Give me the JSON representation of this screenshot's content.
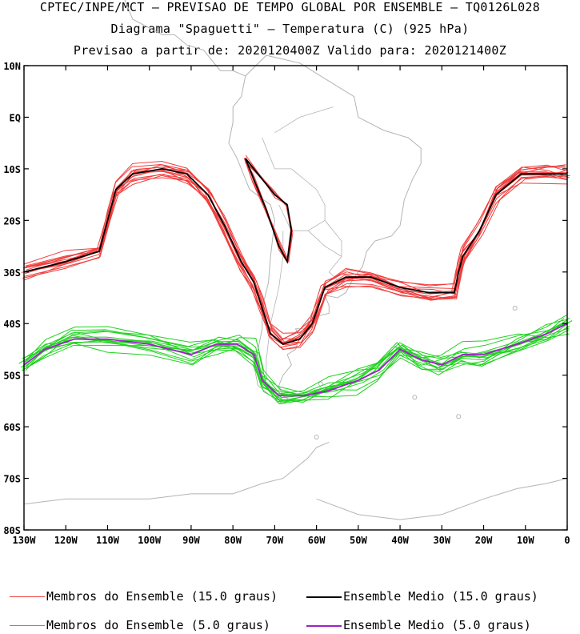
{
  "header": {
    "line1": "CPTEC/INPE/MCT — PREVISAO DE TEMPO GLOBAL POR ENSEMBLE — TQ0126L028",
    "line2": "Diagrama \"Spaguetti\" — Temperatura (C) (925 hPa)",
    "line3": "Previsao a partir de: 2020120400Z  Valido para: 2020121400Z"
  },
  "map": {
    "lat_labels": [
      "10N",
      "EQ",
      "10S",
      "20S",
      "30S",
      "40S",
      "50S",
      "60S",
      "70S",
      "80S"
    ],
    "lon_labels": [
      "130W",
      "120W",
      "110W",
      "100W",
      "90W",
      "80W",
      "70W",
      "60W",
      "50W",
      "40W",
      "30W",
      "20W",
      "10W",
      "0"
    ],
    "lat_range": [
      10,
      -80
    ],
    "lon_range": [
      -130,
      0
    ],
    "coastline_color": "#b4b4b4"
  },
  "legend": {
    "members_15": "Membros do Ensemble (15.0 graus)",
    "mean_15": "Ensemble Medio (15.0 graus)",
    "members_5": "Membros do Ensemble (5.0 graus)",
    "mean_5": "Ensemble Medio (5.0 graus)"
  },
  "colors": {
    "members_15": "#f03c3c",
    "mean_15": "#000000",
    "members_5": "#1ed21e",
    "mean_5": "#a020c8"
  },
  "contours": {
    "iso_15": [
      [
        -130,
        -30
      ],
      [
        -120,
        -28
      ],
      [
        -112,
        -26
      ],
      [
        -110,
        -20
      ],
      [
        -108,
        -14
      ],
      [
        -104,
        -11
      ],
      [
        -97,
        -10
      ],
      [
        -91,
        -11
      ],
      [
        -86,
        -15
      ],
      [
        -82,
        -21
      ],
      [
        -78,
        -28
      ],
      [
        -75,
        -32
      ],
      [
        -73,
        -37
      ],
      [
        -71,
        -42
      ],
      [
        -68,
        -44
      ],
      [
        -64,
        -43
      ],
      [
        -61,
        -40
      ],
      [
        -58,
        -33
      ],
      [
        -53,
        -31
      ],
      [
        -47,
        -31
      ],
      [
        -40,
        -33
      ],
      [
        -33,
        -34
      ],
      [
        -27,
        -34
      ],
      [
        -26,
        -30
      ],
      [
        -25,
        -27
      ],
      [
        -21,
        -22
      ],
      [
        -17,
        -15
      ],
      [
        -11,
        -11
      ],
      [
        -5,
        -11
      ],
      [
        0,
        -11
      ]
    ],
    "iso_15_andes": [
      [
        -77,
        -8
      ],
      [
        -73,
        -12
      ],
      [
        -70,
        -15
      ],
      [
        -67,
        -17
      ],
      [
        -66,
        -22
      ],
      [
        -67,
        -28
      ],
      [
        -69,
        -25
      ],
      [
        -72,
        -18
      ],
      [
        -75,
        -12
      ],
      [
        -77,
        -8
      ]
    ],
    "iso_5": [
      [
        -130,
        -48
      ],
      [
        -125,
        -45
      ],
      [
        -118,
        -43
      ],
      [
        -110,
        -43
      ],
      [
        -100,
        -44
      ],
      [
        -90,
        -46
      ],
      [
        -84,
        -44
      ],
      [
        -79,
        -44
      ],
      [
        -75,
        -46
      ],
      [
        -73,
        -51
      ],
      [
        -69,
        -54
      ],
      [
        -63,
        -54
      ],
      [
        -57,
        -53
      ],
      [
        -50,
        -51
      ],
      [
        -45,
        -49
      ],
      [
        -40,
        -45
      ],
      [
        -35,
        -47
      ],
      [
        -30,
        -48
      ],
      [
        -25,
        -46
      ],
      [
        -20,
        -46
      ],
      [
        -12,
        -44
      ],
      [
        -5,
        -42
      ],
      [
        0,
        -40
      ]
    ]
  }
}
